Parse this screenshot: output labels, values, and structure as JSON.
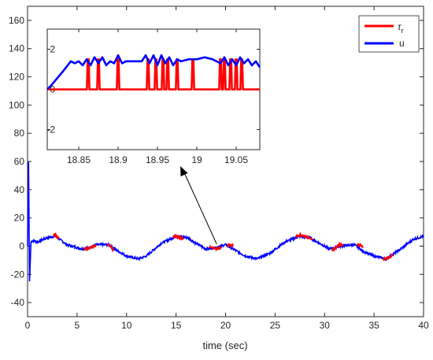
{
  "chart_data": [
    {
      "type": "line",
      "xlabel": "time (sec)",
      "ylabel": "",
      "xlim": [
        0,
        40
      ],
      "ylim": [
        -50,
        170
      ],
      "xticks": [
        0,
        5,
        10,
        15,
        20,
        25,
        30,
        35,
        40
      ],
      "yticks": [
        -40,
        -20,
        0,
        20,
        40,
        60,
        80,
        100,
        120,
        140,
        160
      ],
      "legend": {
        "placement": "top-right",
        "entries": [
          {
            "label": "τ",
            "sub": "r",
            "color": "#ff0000"
          },
          {
            "label": "u",
            "sub": "",
            "color": "#0000ff"
          }
        ]
      },
      "series": [
        {
          "name": "τr",
          "color": "#ff0000",
          "description_points": {
            "x": [
              0,
              0.2,
              2.5,
              2.8,
              3.0,
              5.5,
              6.0,
              7.0,
              8.2,
              8.6,
              11.2,
              14.0,
              15.0,
              15.5,
              18.5,
              19.0,
              20.5,
              23.5,
              26.5,
              27.5,
              28.5,
              30.8,
              31.5,
              33.5,
              36.0,
              36.5,
              39.5,
              40
            ],
            "y": [
              0,
              4,
              7,
              8,
              6,
              -1,
              -2,
              1,
              1,
              -2,
              -8,
              5,
              7,
              6,
              -1,
              -2,
              1,
              -9,
              5,
              8,
              6,
              -3,
              1,
              1,
              -9,
              -8,
              6,
              7
            ]
          }
        },
        {
          "name": "u",
          "color": "#0000ff",
          "description_points": {
            "x": [
              0,
              0.1,
              0.2,
              0.35,
              0.5,
              1.0,
              2.0,
              2.8,
              3.2,
              4.0,
              5.5,
              6.2,
              7.0,
              8.2,
              9.0,
              10.0,
              11.2,
              12.0,
              13.5,
              15.0,
              16.2,
              17.0,
              18.0,
              19.0,
              20.0,
              21.0,
              22.0,
              23.2,
              24.5,
              26.0,
              27.5,
              28.5,
              29.5,
              30.5,
              31.5,
              33.0,
              34.0,
              35.0,
              36.2,
              37.5,
              39.0,
              40
            ],
            "y": [
              0,
              60,
              -25,
              3,
              4,
              3,
              6,
              7,
              5,
              1,
              -2,
              -1,
              1,
              1,
              -3,
              -7,
              -9,
              -7,
              2,
              7,
              6,
              2,
              -2,
              -1,
              1,
              -3,
              -7,
              -9,
              -5,
              3,
              7,
              6,
              2,
              -2,
              0,
              1,
              -4,
              -7,
              -9,
              -3,
              5,
              7
            ]
          }
        }
      ],
      "annotations": [
        {
          "type": "arrow",
          "from": [
            19.0,
            0
          ],
          "to": "inset"
        }
      ]
    },
    {
      "type": "line",
      "placement": "inset",
      "xlim": [
        18.81,
        19.08
      ],
      "ylim": [
        -3,
        3
      ],
      "xticks": [
        18.85,
        18.9,
        18.95,
        19,
        19.05
      ],
      "yticks": [
        -2,
        0,
        2
      ],
      "series": [
        {
          "name": "τr",
          "color": "#ff0000",
          "pulses_x": [
            18.862,
            18.875,
            18.9,
            18.938,
            18.948,
            18.957,
            18.963,
            18.975,
            18.995,
            19.03,
            19.035,
            19.043,
            19.05,
            19.057
          ],
          "base": 0,
          "peak": 1.5
        },
        {
          "name": "u",
          "color": "#0000ff",
          "description_points": {
            "x": [
              18.81,
              18.815,
              18.83,
              18.84,
              18.845,
              18.85,
              18.855,
              18.86,
              18.865,
              18.87,
              18.875,
              18.88,
              18.885,
              18.89,
              18.895,
              18.9,
              18.905,
              18.91,
              18.92,
              18.93,
              18.935,
              18.94,
              18.945,
              18.95,
              18.955,
              18.96,
              18.965,
              18.97,
              18.975,
              18.98,
              18.99,
              19.0,
              19.01,
              19.02,
              19.03,
              19.035,
              19.04,
              19.045,
              19.05,
              19.055,
              19.06,
              19.065,
              19.07,
              19.075,
              19.08
            ],
            "y": [
              0,
              0.2,
              0.9,
              1.4,
              1.3,
              1.4,
              1.2,
              1.5,
              1.2,
              1.6,
              1.3,
              1.6,
              1.2,
              1.4,
              1.3,
              1.7,
              1.3,
              1.4,
              1.4,
              1.4,
              1.7,
              1.3,
              1.7,
              1.2,
              1.7,
              1.3,
              1.6,
              1.2,
              1.5,
              1.4,
              1.5,
              1.5,
              1.6,
              1.5,
              1.3,
              1.6,
              1.2,
              1.5,
              1.2,
              1.6,
              1.3,
              1.5,
              1.2,
              1.4,
              1.1
            ]
          }
        }
      ]
    }
  ]
}
